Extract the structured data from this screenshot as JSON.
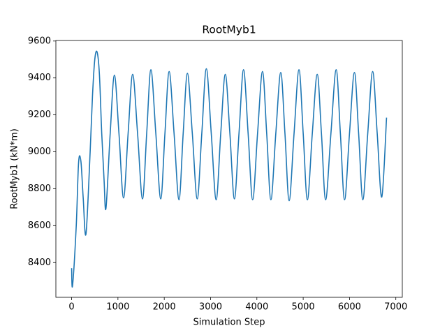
{
  "chart_data": {
    "type": "line",
    "title": "RootMyb1",
    "x_label": "Simulation Step",
    "y_label": "RootMyb1 (kN*m)",
    "x": [
      0,
      20,
      100,
      150,
      200,
      250,
      310,
      400,
      450,
      500,
      550,
      600,
      650,
      700,
      742,
      833,
      924,
      1022,
      1121,
      1220,
      1318,
      1424,
      1530,
      1621,
      1712,
      1818,
      1924,
      2015,
      2106,
      2212,
      2318,
      2409,
      2500,
      2606,
      2712,
      2811,
      2909,
      3015,
      3121,
      3220,
      3318,
      3417,
      3515,
      3614,
      3712,
      3811,
      3909,
      4015,
      4121,
      4212,
      4303,
      4409,
      4515,
      4606,
      4697,
      4803,
      4909,
      5000,
      5091,
      5197,
      5303,
      5394,
      5485,
      5599,
      5712,
      5803,
      5894,
      6000,
      6106,
      6197,
      6288,
      6394,
      6500,
      6598,
      6697,
      6800
    ],
    "series": [
      {
        "name": "RootMyb1",
        "color": "#1f77b4",
        "values": [
          8370,
          8275,
          8600,
          8940,
          8950,
          8750,
          8555,
          9000,
          9300,
          9500,
          9540,
          9420,
          9100,
          8850,
          8695,
          9100,
          9415,
          9100,
          8750,
          9100,
          9420,
          9100,
          8745,
          9100,
          9445,
          9100,
          8745,
          9100,
          9435,
          9100,
          8740,
          9100,
          9425,
          9100,
          8745,
          9100,
          9450,
          9100,
          8740,
          9100,
          9420,
          9100,
          8745,
          9100,
          9445,
          9100,
          8740,
          9100,
          9435,
          9100,
          8740,
          9100,
          9430,
          9100,
          8735,
          9100,
          9445,
          9100,
          8740,
          9100,
          9420,
          9100,
          8740,
          9100,
          9445,
          9100,
          8740,
          9100,
          9430,
          9100,
          8740,
          9100,
          9435,
          9100,
          8755,
          9185
        ]
      }
    ],
    "xlim": [
      -340,
      7140
    ],
    "ylim": [
      8212,
      9603
    ],
    "xticks": [
      0,
      1000,
      2000,
      3000,
      4000,
      5000,
      6000,
      7000
    ],
    "yticks": [
      8400,
      8600,
      8800,
      9000,
      9200,
      9400,
      9600
    ]
  }
}
